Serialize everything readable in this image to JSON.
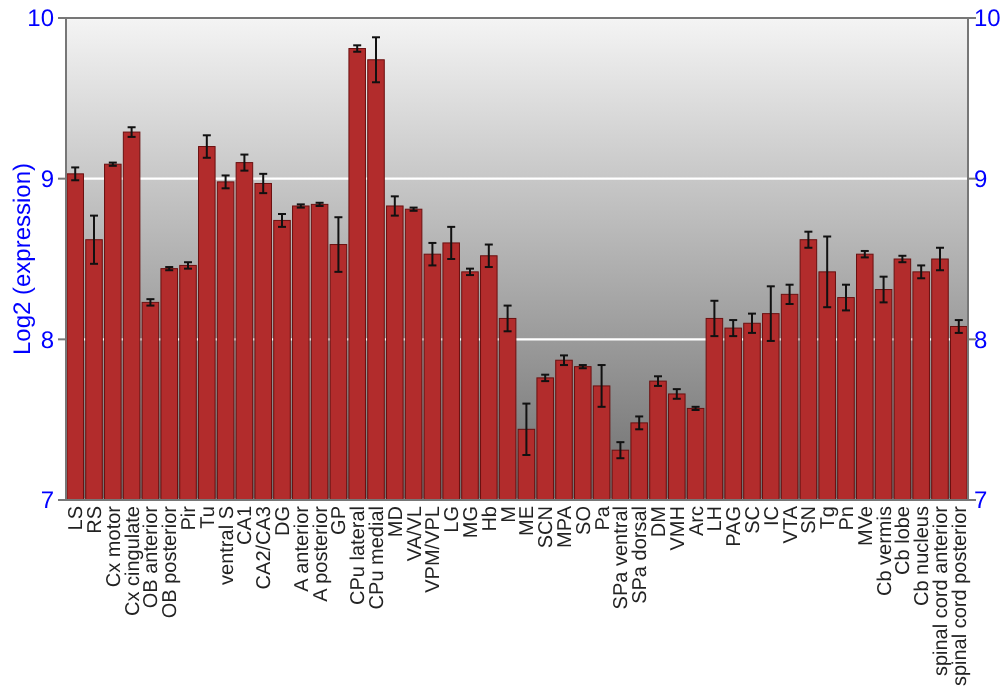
{
  "chart_data": {
    "type": "bar",
    "ylabel": "Log2 (expression)",
    "categories": [
      "LS",
      "RS",
      "Cx motor",
      "Cx cingulate",
      "OB anterior",
      "OB posterior",
      "Pir",
      "Tu",
      "ventral S",
      "CA1",
      "CA2/CA3",
      "DG",
      "A anterior",
      "A posterior",
      "GP",
      "CPu lateral",
      "CPu medial",
      "MD",
      "VA/VL",
      "VPM/VPL",
      "LG",
      "MG",
      "Hb",
      "M",
      "ME",
      "SCN",
      "MPA",
      "SO",
      "Pa",
      "SPa ventral",
      "SPa dorsal",
      "DM",
      "VMH",
      "Arc",
      "LH",
      "PAG",
      "SC",
      "IC",
      "VTA",
      "SN",
      "Tg",
      "Pn",
      "MVe",
      "Cb vermis",
      "Cb lobe",
      "Cb nucleus",
      "spinal cord anterior",
      "spinal cord posterior"
    ],
    "values": [
      9.03,
      8.62,
      9.09,
      9.29,
      8.23,
      8.44,
      8.46,
      9.2,
      8.98,
      9.1,
      8.97,
      8.74,
      8.83,
      8.84,
      8.59,
      9.81,
      9.74,
      8.83,
      8.81,
      8.53,
      8.6,
      8.42,
      8.52,
      8.13,
      7.44,
      7.76,
      7.87,
      7.83,
      7.71,
      7.31,
      7.48,
      7.74,
      7.66,
      7.57,
      8.13,
      8.07,
      8.1,
      8.16,
      8.28,
      8.62,
      8.42,
      8.26,
      8.53,
      8.31,
      8.5,
      8.42,
      8.5,
      8.08
    ],
    "errors": [
      0.04,
      0.15,
      0.01,
      0.03,
      0.02,
      0.01,
      0.02,
      0.07,
      0.04,
      0.05,
      0.06,
      0.04,
      0.01,
      0.01,
      0.17,
      0.02,
      0.14,
      0.06,
      0.01,
      0.07,
      0.1,
      0.02,
      0.07,
      0.08,
      0.16,
      0.02,
      0.03,
      0.01,
      0.13,
      0.05,
      0.04,
      0.03,
      0.03,
      0.01,
      0.11,
      0.05,
      0.06,
      0.17,
      0.06,
      0.05,
      0.22,
      0.08,
      0.02,
      0.08,
      0.02,
      0.04,
      0.07,
      0.04
    ],
    "color": "#b22c2c",
    "ylim": [
      7,
      10
    ],
    "yticks": [
      7,
      8,
      9,
      10
    ],
    "y2lim": [
      7,
      10
    ],
    "y2ticks": [
      7,
      8,
      9,
      10
    ],
    "grid": "y"
  }
}
